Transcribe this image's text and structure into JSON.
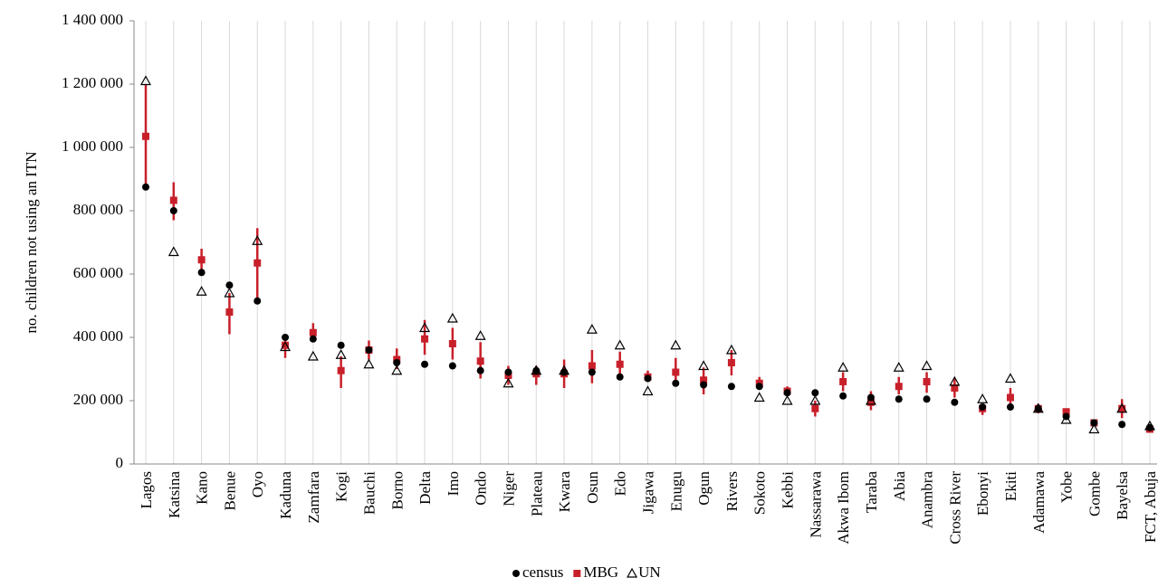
{
  "chart_data": {
    "type": "scatter",
    "y_label": "no. children not using an ITN",
    "categories": [
      "Lagos",
      "Katsina",
      "Kano",
      "Benue",
      "Oyo",
      "Kaduna",
      "Zamfara",
      "Kogi",
      "Bauchi",
      "Borno",
      "Delta",
      "Imo",
      "Ondo",
      "Niger",
      "Plateau",
      "Kwara",
      "Osun",
      "Edo",
      "Jigawa",
      "Enugu",
      "Ogun",
      "Rivers",
      "Sokoto",
      "Kebbi",
      "Nassarawa",
      "Akwa Ibom",
      "Taraba",
      "Abia",
      "Anambra",
      "Cross River",
      "Ebonyi",
      "Ekiti",
      "Adamawa",
      "Yobe",
      "Gombe",
      "Bayelsa",
      "FCT, Abuja"
    ],
    "series": [
      {
        "name": "census",
        "color": "#000000",
        "marker": "circle",
        "values": [
          875000,
          800000,
          605000,
          565000,
          515000,
          400000,
          395000,
          375000,
          360000,
          320000,
          315000,
          310000,
          295000,
          290000,
          295000,
          290000,
          290000,
          275000,
          270000,
          255000,
          250000,
          245000,
          245000,
          225000,
          225000,
          215000,
          210000,
          205000,
          205000,
          195000,
          180000,
          180000,
          175000,
          150000,
          130000,
          125000,
          115000
        ]
      },
      {
        "name": "MBG",
        "color": "#c8202a",
        "marker": "square",
        "values": [
          1035000,
          833000,
          645000,
          480000,
          635000,
          375000,
          415000,
          295000,
          360000,
          330000,
          395000,
          380000,
          325000,
          280000,
          285000,
          285000,
          310000,
          315000,
          275000,
          290000,
          265000,
          320000,
          255000,
          230000,
          175000,
          260000,
          195000,
          245000,
          260000,
          240000,
          175000,
          210000,
          175000,
          165000,
          130000,
          175000,
          110000
        ],
        "lower": [
          880000,
          770000,
          605000,
          410000,
          520000,
          335000,
          385000,
          240000,
          330000,
          300000,
          345000,
          330000,
          270000,
          250000,
          250000,
          240000,
          255000,
          285000,
          260000,
          255000,
          220000,
          280000,
          235000,
          215000,
          150000,
          230000,
          170000,
          220000,
          225000,
          210000,
          155000,
          175000,
          160000,
          155000,
          120000,
          145000,
          100000
        ],
        "upper": [
          1200000,
          890000,
          680000,
          540000,
          745000,
          410000,
          445000,
          340000,
          390000,
          365000,
          455000,
          430000,
          385000,
          310000,
          310000,
          330000,
          360000,
          355000,
          295000,
          335000,
          305000,
          360000,
          275000,
          245000,
          200000,
          290000,
          230000,
          275000,
          290000,
          270000,
          190000,
          240000,
          190000,
          175000,
          135000,
          205000,
          120000
        ]
      },
      {
        "name": "UN",
        "color": "#000000",
        "marker": "triangle",
        "values": [
          1210000,
          670000,
          545000,
          540000,
          705000,
          370000,
          340000,
          345000,
          315000,
          295000,
          430000,
          460000,
          405000,
          255000,
          295000,
          295000,
          425000,
          375000,
          230000,
          375000,
          310000,
          360000,
          210000,
          200000,
          200000,
          305000,
          200000,
          305000,
          310000,
          260000,
          205000,
          270000,
          175000,
          140000,
          110000,
          175000,
          120000
        ]
      }
    ],
    "ylim": [
      0,
      1400000
    ],
    "yticks": [
      0,
      {
        "value": 200000,
        "label": "200 000"
      },
      {
        "value": 400000,
        "label": "400 000"
      },
      {
        "value": 600000,
        "label": "600 000"
      },
      {
        "value": 800000,
        "label": "800 000"
      },
      {
        "value": 1000000,
        "label": "1 000 000"
      },
      {
        "value": 1200000,
        "label": "1 200 000"
      },
      {
        "value": 1400000,
        "label": "1 400 000"
      }
    ],
    "grid": "x",
    "legend": "bottom"
  }
}
